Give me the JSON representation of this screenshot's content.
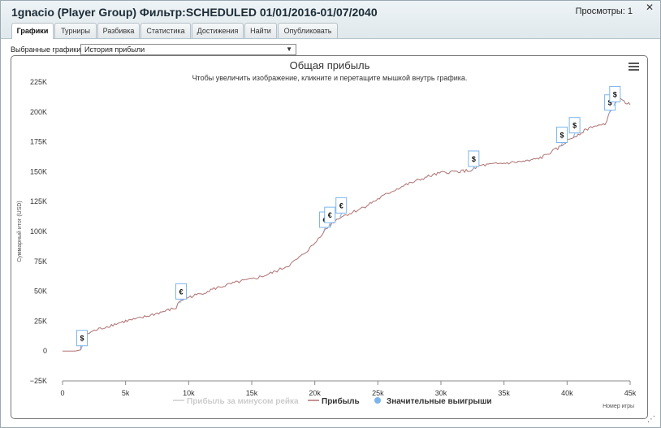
{
  "window": {
    "title": "1gnacio (Player Group) Фильтр:SCHEDULED 01/01/2016-01/07/2040",
    "views_label": "Просмотры: 1",
    "close_symbol": "✕",
    "resize_symbol": "⋰"
  },
  "tabs": [
    {
      "label": "Графики",
      "active": true
    },
    {
      "label": "Турниры",
      "active": false
    },
    {
      "label": "Разбивка",
      "active": false
    },
    {
      "label": "Статистика",
      "active": false
    },
    {
      "label": "Достижения",
      "active": false
    },
    {
      "label": "Найти",
      "active": false
    },
    {
      "label": "Опубликовать",
      "active": false
    }
  ],
  "selector": {
    "label": "Выбранные графики:",
    "value": "История прибыли"
  },
  "chart_data": {
    "type": "line",
    "title": "Общая прибыль",
    "subtitle": "Чтобы увеличить изображение, кликните и перетащите мышкой внутрь графика.",
    "xlabel": "Номер игры",
    "ylabel": "Суммарный итог (USD)",
    "xlim": [
      0,
      45000
    ],
    "ylim": [
      -25000,
      225000
    ],
    "x_ticks": [
      0,
      5000,
      10000,
      15000,
      20000,
      25000,
      30000,
      35000,
      40000,
      45000
    ],
    "x_tick_labels": [
      "0",
      "5k",
      "10k",
      "15k",
      "20k",
      "25k",
      "30k",
      "35k",
      "40k",
      "45k"
    ],
    "y_ticks": [
      -25000,
      0,
      25000,
      50000,
      75000,
      100000,
      125000,
      150000,
      175000,
      200000,
      225000
    ],
    "y_tick_labels": [
      "−25K",
      "0",
      "25K",
      "50K",
      "75K",
      "100K",
      "125K",
      "150K",
      "175K",
      "200K",
      "225K"
    ],
    "grid": false,
    "legend_position": "bottom",
    "series": [
      {
        "name": "Прибыль за минусом рейка",
        "color": "#cccccc",
        "visible": false,
        "x": [],
        "y": []
      },
      {
        "name": "Прибыль",
        "color": "#b07070",
        "visible": true,
        "x": [
          0,
          1000,
          1450,
          1500,
          2500,
          4000,
          5000,
          6000,
          7000,
          8000,
          9000,
          9300,
          10000,
          11000,
          12000,
          13000,
          14000,
          15000,
          16000,
          17000,
          18000,
          19000,
          20000,
          20700,
          21100,
          21500,
          22000,
          23000,
          24000,
          25000,
          26000,
          27000,
          28000,
          29000,
          30000,
          31000,
          32500,
          33000,
          34000,
          35000,
          36000,
          37000,
          38000,
          39000,
          39500,
          40000,
          41000,
          42000,
          43000,
          43300,
          43700,
          44000,
          44500,
          45000
        ],
        "y": [
          0,
          0,
          1000,
          12000,
          17000,
          22000,
          25000,
          27000,
          30000,
          33000,
          36000,
          42000,
          45000,
          48000,
          52000,
          55000,
          58000,
          60000,
          63000,
          67000,
          72000,
          80000,
          90000,
          100000,
          104000,
          108000,
          112000,
          116000,
          121000,
          127000,
          133000,
          138000,
          142000,
          146000,
          149000,
          150000,
          151000,
          155000,
          156000,
          157000,
          158000,
          159000,
          162000,
          168000,
          171000,
          176000,
          182000,
          188000,
          189000,
          198000,
          205000,
          211000,
          209000,
          206000
        ]
      },
      {
        "name": "Значительные выигрыши",
        "color": "#7cb5ec",
        "visible": true,
        "marker": "circle",
        "x": [],
        "y": []
      }
    ],
    "flags": [
      {
        "x": 1450,
        "y": 1000,
        "label": "$"
      },
      {
        "x": 9300,
        "y": 40000,
        "label": "€"
      },
      {
        "x": 20700,
        "y": 100000,
        "label": "€"
      },
      {
        "x": 21100,
        "y": 104000,
        "label": "€"
      },
      {
        "x": 22000,
        "y": 112000,
        "label": "€"
      },
      {
        "x": 32500,
        "y": 151000,
        "label": "$"
      },
      {
        "x": 39500,
        "y": 171000,
        "label": "$"
      },
      {
        "x": 40500,
        "y": 179000,
        "label": "$"
      },
      {
        "x": 43300,
        "y": 198000,
        "label": "$"
      },
      {
        "x": 43700,
        "y": 205000,
        "label": "$"
      }
    ]
  }
}
